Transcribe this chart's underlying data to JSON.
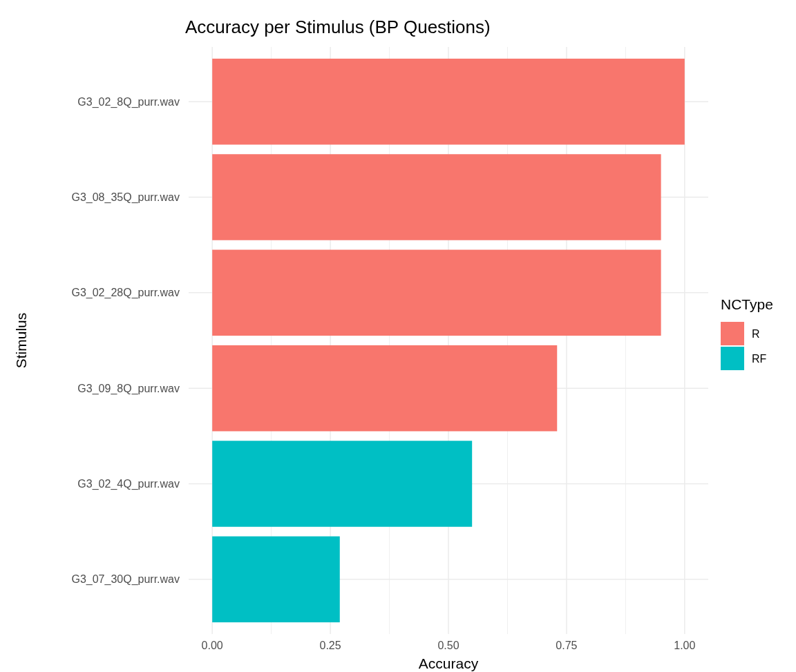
{
  "chart_data": {
    "type": "bar",
    "orientation": "horizontal",
    "title": "Accuracy per Stimulus (BP Questions)",
    "xlabel": "Accuracy",
    "ylabel": "Stimulus",
    "legend_title": "NCType",
    "legend": "right",
    "grid": true,
    "categories": [
      "G3_02_8Q_purr.wav",
      "G3_08_35Q_purr.wav",
      "G3_02_28Q_purr.wav",
      "G3_09_8Q_purr.wav",
      "G3_02_4Q_purr.wav",
      "G3_07_30Q_purr.wav"
    ],
    "series": [
      {
        "name": "R",
        "color": "#f8766d",
        "values": [
          1.0,
          0.95,
          0.95,
          0.73,
          null,
          null
        ]
      },
      {
        "name": "RF",
        "color": "#00bfc4",
        "values": [
          null,
          null,
          null,
          null,
          0.55,
          0.27
        ]
      }
    ],
    "xlim": [
      -0.05,
      1.05
    ],
    "xticks": [
      {
        "value": 0,
        "label": "0.00"
      },
      {
        "value": 0.125,
        "label": null
      },
      {
        "value": 0.25,
        "label": "0.25"
      },
      {
        "value": 0.375,
        "label": null
      },
      {
        "value": 0.5,
        "label": "0.50"
      },
      {
        "value": 0.625,
        "label": null
      },
      {
        "value": 0.75,
        "label": "0.75"
      },
      {
        "value": 0.875,
        "label": null
      },
      {
        "value": 1,
        "label": "1.00"
      }
    ]
  }
}
